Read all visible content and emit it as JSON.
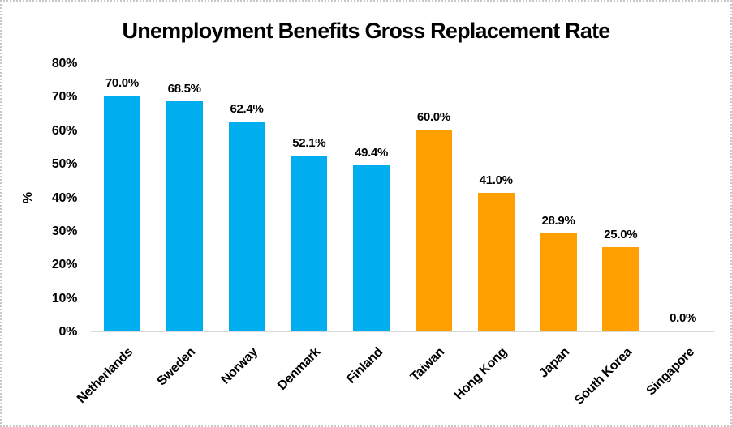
{
  "chart_data": {
    "type": "bar",
    "title": "Unemployment Benefits Gross Replacement Rate",
    "xlabel": "",
    "ylabel": "%",
    "categories": [
      "Netherlands",
      "Sweden",
      "Norway",
      "Denmark",
      "Finland",
      "Taiwan",
      "Hong Kong",
      "Japan",
      "South Korea",
      "Singapore"
    ],
    "values": [
      70.0,
      68.5,
      62.4,
      52.1,
      49.4,
      60.0,
      41.0,
      28.9,
      25.0,
      0.0
    ],
    "data_labels": [
      "70.0%",
      "68.5%",
      "62.4%",
      "52.1%",
      "49.4%",
      "60.0%",
      "41.0%",
      "28.9%",
      "25.0%",
      "0.0%"
    ],
    "bar_colors": [
      "#00AEEF",
      "#00AEEF",
      "#00AEEF",
      "#00AEEF",
      "#00AEEF",
      "#FFA000",
      "#FFA000",
      "#FFA000",
      "#FFA000",
      "#FFA000"
    ],
    "series_colors": {
      "western": "#00AEEF",
      "asian": "#FFA000"
    },
    "ylim": [
      0,
      80
    ],
    "ytick_step": 10,
    "ytick_labels": [
      "0%",
      "10%",
      "20%",
      "30%",
      "40%",
      "50%",
      "60%",
      "70%",
      "80%"
    ],
    "grid": false,
    "legend": false,
    "category_label_rotation_deg": 45,
    "axis_line_color": "#D9D9D9",
    "background_color": "#FFFFFF",
    "border_color": "#C8C8C8",
    "text_color": "#000000"
  }
}
